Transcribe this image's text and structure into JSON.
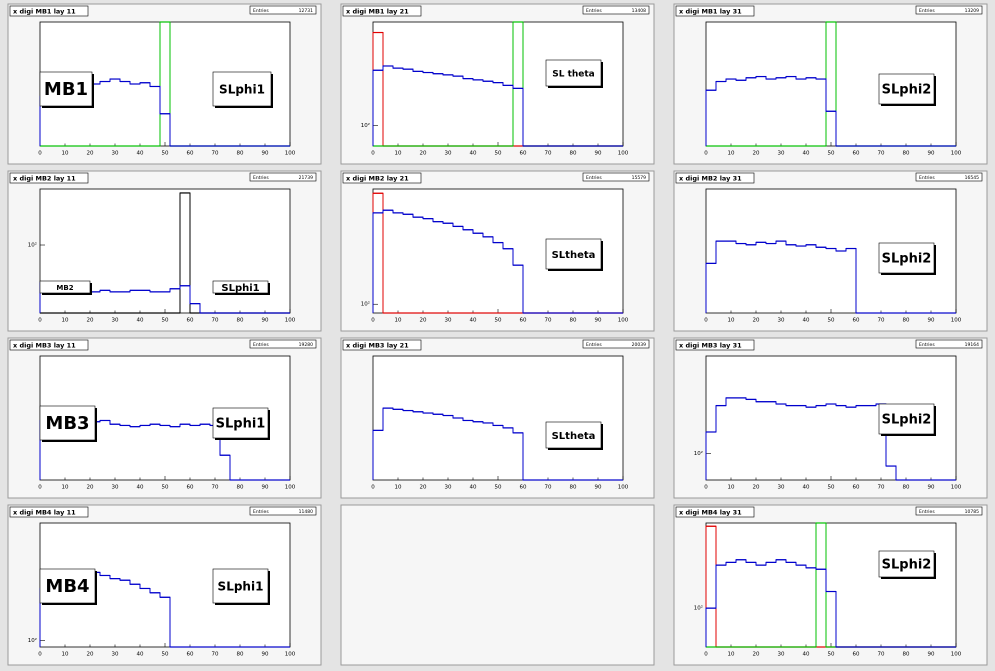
{
  "chart_data": [
    {
      "type": "histogram",
      "title": "x digi MB1 lay 11",
      "stats": {
        "label": "Entries",
        "value": 12731
      },
      "labels": [
        "MB1",
        "SLphi1"
      ],
      "bins": [
        0,
        4,
        8,
        12,
        16,
        20,
        24,
        28,
        32,
        36,
        40,
        44,
        48,
        52,
        56,
        60,
        64,
        68,
        72,
        76,
        80,
        84,
        88,
        92,
        96,
        100
      ],
      "xlim": [
        0,
        100
      ],
      "xticks": [
        0,
        10,
        20,
        30,
        40,
        50,
        60,
        70,
        80,
        90,
        100
      ],
      "ylim": [
        0,
        100
      ],
      "log": false,
      "series": [
        {
          "color": "#00c000",
          "values": [
            0,
            0,
            0,
            0,
            0,
            0,
            0,
            0,
            0,
            0,
            0,
            0,
            100,
            0,
            0,
            0,
            0,
            0,
            0,
            0,
            0,
            0,
            0,
            0,
            0
          ]
        },
        {
          "color": "#0000cc",
          "values": [
            40,
            50,
            52,
            51,
            53,
            50,
            52,
            54,
            52,
            50,
            51,
            48,
            26,
            0,
            0,
            0,
            0,
            0,
            0,
            0,
            0,
            0,
            0,
            0,
            0
          ]
        }
      ]
    },
    {
      "type": "histogram",
      "title": "x digi MB1 lay 21",
      "stats": {
        "label": "Entries",
        "value": 13408
      },
      "labels": [
        "SL theta"
      ],
      "bins": [
        0,
        4,
        8,
        12,
        16,
        20,
        24,
        28,
        32,
        36,
        40,
        44,
        48,
        52,
        56,
        60,
        64,
        68,
        72,
        76,
        80,
        84,
        88,
        92,
        96,
        100
      ],
      "xlim": [
        0,
        100
      ],
      "xticks": [
        0,
        10,
        20,
        30,
        40,
        50,
        60,
        70,
        80,
        90,
        100
      ],
      "ylim": [
        70,
        600
      ],
      "log": true,
      "yticks": [
        {
          "value": 100,
          "label": "10²"
        }
      ],
      "series": [
        {
          "color": "#e00000",
          "values": [
            500,
            0,
            0,
            0,
            0,
            0,
            0,
            0,
            0,
            0,
            0,
            0,
            0,
            0,
            0,
            0,
            0,
            0,
            0,
            0,
            0,
            0,
            0,
            0,
            0
          ]
        },
        {
          "color": "#00c000",
          "values": [
            0,
            0,
            0,
            0,
            0,
            0,
            0,
            0,
            0,
            0,
            0,
            0,
            0,
            0,
            600,
            0,
            0,
            0,
            0,
            0,
            0,
            0,
            0,
            0,
            0
          ]
        },
        {
          "color": "#0000cc",
          "values": [
            260,
            280,
            270,
            265,
            255,
            250,
            245,
            240,
            235,
            225,
            220,
            215,
            210,
            200,
            190,
            0,
            0,
            0,
            0,
            0,
            0,
            0,
            0,
            0,
            0
          ]
        }
      ]
    },
    {
      "type": "histogram",
      "title": "x digi MB1 lay 31",
      "stats": {
        "label": "Entries",
        "value": 13209
      },
      "labels": [
        "SLphi2"
      ],
      "bins": [
        0,
        4,
        8,
        12,
        16,
        20,
        24,
        28,
        32,
        36,
        40,
        44,
        48,
        52,
        56,
        60,
        64,
        68,
        72,
        76,
        80,
        84,
        88,
        92,
        96,
        100
      ],
      "xlim": [
        0,
        100
      ],
      "xticks": [
        0,
        10,
        20,
        30,
        40,
        50,
        60,
        70,
        80,
        90,
        100
      ],
      "ylim": [
        0,
        100
      ],
      "log": false,
      "series": [
        {
          "color": "#00c000",
          "values": [
            0,
            0,
            0,
            0,
            0,
            0,
            0,
            0,
            0,
            0,
            0,
            0,
            100,
            0,
            0,
            0,
            0,
            0,
            0,
            0,
            0,
            0,
            0,
            0,
            0
          ]
        },
        {
          "color": "#0000cc",
          "values": [
            45,
            52,
            54,
            53,
            55,
            56,
            54,
            55,
            56,
            54,
            55,
            54,
            28,
            0,
            0,
            0,
            0,
            0,
            0,
            0,
            0,
            0,
            0,
            0,
            0
          ]
        }
      ]
    },
    {
      "type": "histogram",
      "title": "x digi MB2 lay 11",
      "stats": {
        "label": "Entries",
        "value": 21739
      },
      "labels": [
        "MB2",
        "SLphi1"
      ],
      "bins": [
        0,
        4,
        8,
        12,
        16,
        20,
        24,
        28,
        32,
        36,
        40,
        44,
        48,
        52,
        56,
        60,
        64,
        68,
        72,
        76,
        80,
        84,
        88,
        92,
        96,
        100
      ],
      "xlim": [
        0,
        100
      ],
      "xticks": [
        0,
        10,
        20,
        30,
        40,
        50,
        60,
        70,
        80,
        90,
        100
      ],
      "ylim": [
        50,
        177
      ],
      "log": true,
      "yticks": [
        {
          "value": 100,
          "label": "10²"
        }
      ],
      "series": [
        {
          "color": "#000000",
          "values": [
            0,
            0,
            0,
            0,
            0,
            0,
            0,
            0,
            0,
            0,
            0,
            0,
            0,
            0,
            170,
            0,
            0,
            0,
            0,
            0,
            0,
            0,
            0,
            0,
            0
          ]
        },
        {
          "color": "#0000cc",
          "values": [
            68,
            66,
            64,
            63,
            64,
            62,
            63,
            62,
            62,
            63,
            63,
            62,
            62,
            64,
            66,
            55,
            0,
            0,
            0,
            0,
            0,
            0,
            0,
            0,
            0
          ]
        }
      ]
    },
    {
      "type": "histogram",
      "title": "x digi MB2 lay 21",
      "stats": {
        "label": "Entries",
        "value": 15579
      },
      "labels": [
        "SLtheta"
      ],
      "bins": [
        0,
        4,
        8,
        12,
        16,
        20,
        24,
        28,
        32,
        36,
        40,
        44,
        48,
        52,
        56,
        60,
        64,
        68,
        72,
        76,
        80,
        84,
        88,
        92,
        96,
        100
      ],
      "xlim": [
        0,
        100
      ],
      "xticks": [
        0,
        10,
        20,
        30,
        40,
        50,
        60,
        70,
        80,
        90,
        100
      ],
      "ylim": [
        90,
        400
      ],
      "log": true,
      "yticks": [
        {
          "value": 100,
          "label": "10²"
        }
      ],
      "series": [
        {
          "color": "#e00000",
          "values": [
            380,
            0,
            0,
            0,
            0,
            0,
            0,
            0,
            0,
            0,
            0,
            0,
            0,
            0,
            0,
            0,
            0,
            0,
            0,
            0,
            0,
            0,
            0,
            0,
            0
          ]
        },
        {
          "color": "#0000cc",
          "values": [
            300,
            310,
            300,
            295,
            285,
            280,
            270,
            265,
            255,
            245,
            235,
            225,
            210,
            195,
            160,
            0,
            0,
            0,
            0,
            0,
            0,
            0,
            0,
            0,
            0
          ]
        }
      ]
    },
    {
      "type": "histogram",
      "title": "x digi MB2 lay 31",
      "stats": {
        "label": "Entries",
        "value": 16545
      },
      "labels": [
        "SLphi2"
      ],
      "bins": [
        0,
        4,
        8,
        12,
        16,
        20,
        24,
        28,
        32,
        36,
        40,
        44,
        48,
        52,
        56,
        60,
        64,
        68,
        72,
        76,
        80,
        84,
        88,
        92,
        96,
        100
      ],
      "xlim": [
        0,
        100
      ],
      "xticks": [
        0,
        10,
        20,
        30,
        40,
        50,
        60,
        70,
        80,
        90,
        100
      ],
      "ylim": [
        0,
        100
      ],
      "log": false,
      "series": [
        {
          "color": "#0000cc",
          "values": [
            40,
            58,
            58,
            56,
            55,
            57,
            56,
            58,
            55,
            54,
            55,
            53,
            52,
            50,
            52,
            0,
            0,
            0,
            0,
            0,
            0,
            0,
            0,
            0,
            0
          ]
        }
      ]
    },
    {
      "type": "histogram",
      "title": "x digi MB3 lay 11",
      "stats": {
        "label": "Entries",
        "value": 19280
      },
      "labels": [
        "MB3",
        "SLphi1"
      ],
      "bins": [
        0,
        4,
        8,
        12,
        16,
        20,
        24,
        28,
        32,
        36,
        40,
        44,
        48,
        52,
        56,
        60,
        64,
        68,
        72,
        76,
        80,
        84,
        88,
        92,
        96,
        100
      ],
      "xlim": [
        0,
        100
      ],
      "xticks": [
        0,
        10,
        20,
        30,
        40,
        50,
        60,
        70,
        80,
        90,
        100
      ],
      "ylim": [
        0,
        100
      ],
      "log": false,
      "series": [
        {
          "color": "#0000cc",
          "values": [
            48,
            50,
            49,
            48,
            46,
            47,
            48,
            45,
            44,
            43,
            44,
            45,
            44,
            43,
            45,
            44,
            45,
            44,
            20,
            0,
            0,
            0,
            0,
            0,
            0
          ]
        }
      ]
    },
    {
      "type": "histogram",
      "title": "x digi MB3 lay 21",
      "stats": {
        "label": "Entries",
        "value": 20039
      },
      "labels": [
        "SLtheta"
      ],
      "bins": [
        0,
        4,
        8,
        12,
        16,
        20,
        24,
        28,
        32,
        36,
        40,
        44,
        48,
        52,
        56,
        60,
        64,
        68,
        72,
        76,
        80,
        84,
        88,
        92,
        96,
        100
      ],
      "xlim": [
        0,
        100
      ],
      "xticks": [
        0,
        10,
        20,
        30,
        40,
        50,
        60,
        70,
        80,
        90,
        100
      ],
      "ylim": [
        0,
        100
      ],
      "log": false,
      "series": [
        {
          "color": "#0000cc",
          "values": [
            40,
            58,
            57,
            56,
            55,
            54,
            53,
            52,
            50,
            48,
            47,
            46,
            44,
            42,
            38,
            0,
            0,
            0,
            0,
            0,
            0,
            0,
            0,
            0,
            0
          ]
        }
      ]
    },
    {
      "type": "histogram",
      "title": "x digi MB3 lay 31",
      "stats": {
        "label": "Entries",
        "value": 19164
      },
      "labels": [
        "SLphi2"
      ],
      "bins": [
        0,
        4,
        8,
        12,
        16,
        20,
        24,
        28,
        32,
        36,
        40,
        44,
        48,
        52,
        56,
        60,
        64,
        68,
        72,
        76,
        80,
        84,
        88,
        92,
        96,
        100
      ],
      "xlim": [
        0,
        100
      ],
      "xticks": [
        0,
        10,
        20,
        30,
        40,
        50,
        60,
        70,
        80,
        90,
        100
      ],
      "ylim": [
        80,
        228
      ],
      "log": true,
      "yticks": [
        {
          "value": 100,
          "label": "10²"
        }
      ],
      "series": [
        {
          "color": "#0000cc",
          "values": [
            120,
            150,
            160,
            160,
            158,
            155,
            155,
            152,
            150,
            150,
            148,
            150,
            152,
            150,
            148,
            150,
            150,
            152,
            90,
            0,
            0,
            0,
            0,
            0,
            0
          ]
        }
      ]
    },
    {
      "type": "histogram",
      "title": "x digi MB4 lay 11",
      "stats": {
        "label": "Entries",
        "value": 11480
      },
      "labels": [
        "MB4",
        "SLphi1"
      ],
      "bins": [
        0,
        4,
        8,
        12,
        16,
        20,
        24,
        28,
        32,
        36,
        40,
        44,
        48,
        52,
        56,
        60,
        64,
        68,
        72,
        76,
        80,
        84,
        88,
        92,
        96,
        100
      ],
      "xlim": [
        0,
        100
      ],
      "xticks": [
        0,
        10,
        20,
        30,
        40,
        50,
        60,
        70,
        80,
        90,
        100
      ],
      "ylim": [
        95,
        250
      ],
      "log": true,
      "yticks": [
        {
          "value": 100,
          "label": "10²"
        }
      ],
      "series": [
        {
          "color": "#0000cc",
          "values": [
            150,
            170,
            172,
            168,
            168,
            170,
            166,
            162,
            160,
            155,
            150,
            145,
            140,
            0,
            0,
            0,
            0,
            0,
            0,
            0,
            0,
            0,
            0,
            0,
            0
          ]
        }
      ]
    },
    {
      "type": "histogram",
      "title": "x digi MB4 lay 31",
      "stats": {
        "label": "Entries",
        "value": 10785
      },
      "labels": [
        "SLphi2"
      ],
      "bins": [
        0,
        4,
        8,
        12,
        16,
        20,
        24,
        28,
        32,
        36,
        40,
        44,
        48,
        52,
        56,
        60,
        64,
        68,
        72,
        76,
        80,
        84,
        88,
        92,
        96,
        100
      ],
      "xlim": [
        0,
        100
      ],
      "xticks": [
        0,
        10,
        20,
        30,
        40,
        50,
        60,
        70,
        80,
        90,
        100
      ],
      "ylim": [
        80,
        163
      ],
      "log": true,
      "yticks": [
        {
          "value": 100,
          "label": "10²"
        }
      ],
      "series": [
        {
          "color": "#e00000",
          "values": [
            160,
            0,
            0,
            0,
            0,
            0,
            0,
            0,
            0,
            0,
            0,
            0,
            0,
            0,
            0,
            0,
            0,
            0,
            0,
            0,
            0,
            0,
            0,
            0,
            0
          ]
        },
        {
          "color": "#00c000",
          "values": [
            0,
            0,
            0,
            0,
            0,
            0,
            0,
            0,
            0,
            0,
            0,
            163,
            0,
            0,
            0,
            0,
            0,
            0,
            0,
            0,
            0,
            0,
            0,
            0,
            0
          ]
        },
        {
          "color": "#0000cc",
          "values": [
            100,
            128,
            130,
            132,
            130,
            128,
            130,
            132,
            130,
            128,
            126,
            125,
            110,
            0,
            0,
            0,
            0,
            0,
            0,
            0,
            0,
            0,
            0,
            0,
            0
          ]
        }
      ]
    }
  ]
}
